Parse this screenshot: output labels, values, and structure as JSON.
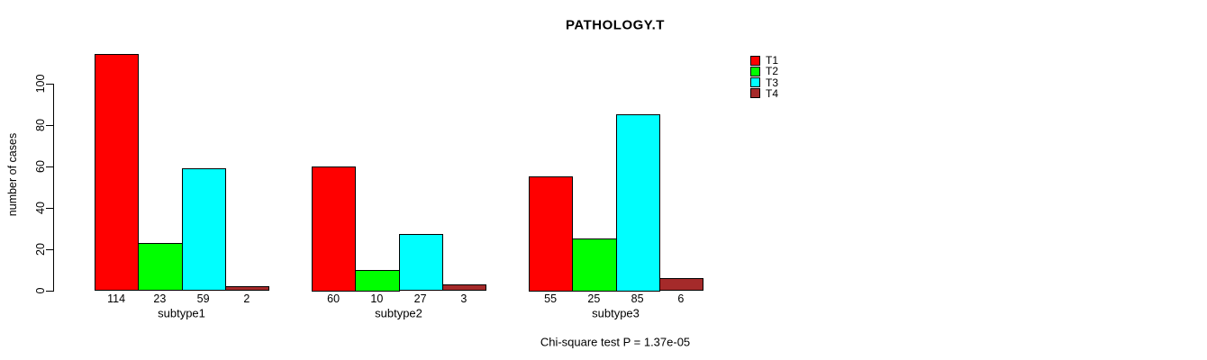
{
  "title": "PATHOLOGY.T",
  "note": "Chi-square test P = 1.37e-05",
  "chart_data": {
    "type": "bar",
    "grouped": true,
    "title": "PATHOLOGY.T",
    "xlabel": "",
    "ylabel": "number of cases",
    "ylim": [
      0,
      115
    ],
    "yticks": [
      0,
      20,
      40,
      60,
      80,
      100
    ],
    "grid": false,
    "legend_position": "top-right",
    "categories": [
      "subtype1",
      "subtype2",
      "subtype3"
    ],
    "series": [
      {
        "name": "T1",
        "color": "#FF0000",
        "values": [
          114,
          60,
          55
        ]
      },
      {
        "name": "T2",
        "color": "#00FF00",
        "values": [
          23,
          10,
          25
        ]
      },
      {
        "name": "T3",
        "color": "#00FFFF",
        "values": [
          59,
          27,
          85
        ]
      },
      {
        "name": "T4",
        "color": "#A52A2A",
        "values": [
          2,
          3,
          6
        ]
      }
    ],
    "bar_value_labels": [
      [
        114,
        23,
        59,
        2
      ],
      [
        60,
        10,
        27,
        3
      ],
      [
        55,
        25,
        85,
        6
      ]
    ],
    "annotation": "Chi-square test P = 1.37e-05"
  },
  "legend": {
    "items": [
      {
        "label": "T1",
        "color": "#FF0000"
      },
      {
        "label": "T2",
        "color": "#00FF00"
      },
      {
        "label": "T3",
        "color": "#00FFFF"
      },
      {
        "label": "T4",
        "color": "#A52A2A"
      }
    ]
  }
}
